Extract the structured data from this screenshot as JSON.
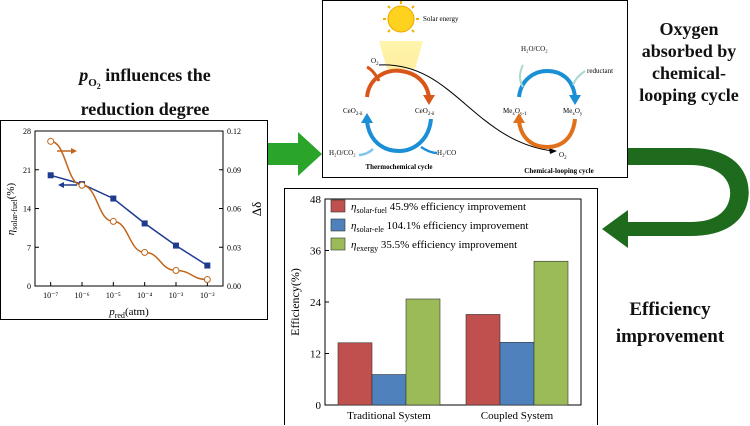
{
  "captions": {
    "po2_main": "p",
    "po2_sub": "O",
    "po2_subsub": "2",
    "po2_rest": " influences the",
    "po2_line2": "reduction degree",
    "oxygen": [
      "Oxygen",
      "absorbed by",
      "chemical-",
      "looping cycle"
    ],
    "efficiency": [
      "Efficiency",
      "improvement"
    ]
  },
  "diagram": {
    "solar_label": "Solar energy",
    "o2_top": "O",
    "o2_top_sub": "2",
    "ceo2_left": "CeO",
    "ceo2_left_sub": "2-δ",
    "ceo2_right": "CeO",
    "ceo2_right_sub": "2-δ",
    "h2o_co2_left": "H₂O/CO₂",
    "h2_co": "H₂/CO",
    "thermochemical": "Thermochemical cycle",
    "h2o_co2_right": "H₂O/CO₂",
    "reductant": "reductant",
    "meo_left": "Me",
    "meo_left_sub": "x",
    "meo_left_mid": "O",
    "meo_left_sub2": "y-1",
    "meo_right": "Me",
    "meo_right_sub": "x",
    "meo_right_mid": "O",
    "meo_right_sub2": "y",
    "o2_bottom": "O",
    "o2_bottom_sub": "2",
    "chemical_looping": "Chemical-looping cycle"
  },
  "colors": {
    "blue_series": "#1f3b8f",
    "orange_series": "#c0651b",
    "bar_fuel": "#c0504d",
    "bar_ele": "#4f81bd",
    "bar_exergy": "#9bbb59",
    "green_arrow": "#2aa52a",
    "dark_green_arrow": "#1e6b1e"
  },
  "chart_data": [
    {
      "type": "line",
      "x_tick_labels": [
        "10⁻⁷",
        "10⁻⁶",
        "10⁻⁵",
        "10⁻⁴",
        "10⁻³",
        "10⁻²"
      ],
      "x_exponents": [
        -7,
        -6,
        -5,
        -4,
        -3,
        -2
      ],
      "xlabel_main": "p",
      "xlabel_sub": "red",
      "xlabel_rest": "(atm)",
      "ylabel_main": "η",
      "ylabel_sub": "solar-fuel",
      "ylabel_rest": "(%)",
      "y2label": "Δδ",
      "ylim": [
        0,
        28
      ],
      "y_ticks": [
        "0",
        "7",
        "14",
        "21",
        "28"
      ],
      "y2lim": [
        0,
        0.12
      ],
      "y2_ticks": [
        "0.00",
        "0.03",
        "0.06",
        "0.09",
        "0.12"
      ],
      "series": [
        {
          "axis": "left",
          "values": [
            20.0,
            18.4,
            15.8,
            11.3,
            7.3,
            3.7
          ]
        },
        {
          "axis": "right",
          "values": [
            0.112,
            0.078,
            0.05,
            0.026,
            0.012,
            0.005
          ]
        }
      ]
    },
    {
      "type": "bar",
      "categories": [
        "Traditional System",
        "Coupled System"
      ],
      "ylabel": "Efficiency(%)",
      "ylim": [
        0,
        48
      ],
      "y_ticks": [
        "0",
        "12",
        "24",
        "36",
        "48"
      ],
      "series": [
        {
          "name": "ηsolar-fuel",
          "values": [
            14.5,
            21.1
          ]
        },
        {
          "name": "ηsolar-ele",
          "values": [
            7.1,
            14.6
          ]
        },
        {
          "name": "ηexergy",
          "values": [
            24.7,
            33.5
          ]
        }
      ],
      "legend": [
        {
          "symbol": "η",
          "sub": "solar-fuel",
          "text": "45.9% efficiency improvement"
        },
        {
          "symbol": "η",
          "sub": "solar-ele",
          "text": "104.1% efficiency improvement"
        },
        {
          "symbol": "η",
          "sub": "exergy",
          "text": "35.5% efficiency improvement"
        }
      ]
    }
  ]
}
